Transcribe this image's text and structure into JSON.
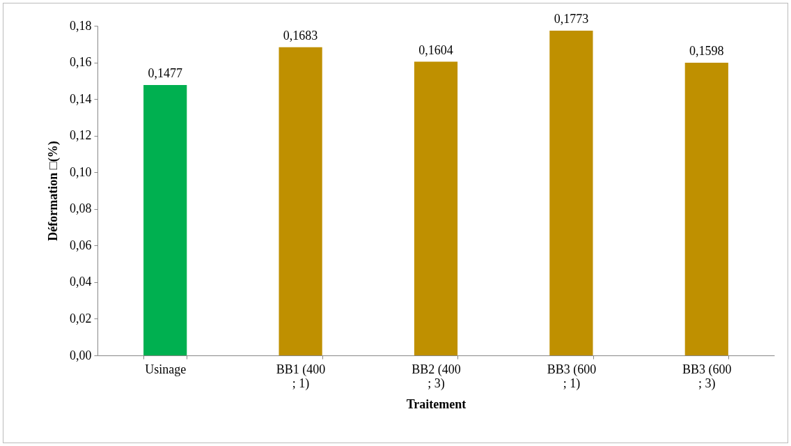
{
  "chart_data": {
    "type": "bar",
    "xlabel": "Traitement",
    "ylabel": "Déformation □(%)",
    "categories": [
      "Usinage",
      "BB1 (400 ; 1)",
      "BB2 (400 ; 3)",
      "BB3 (600 ; 1)",
      "BB3 (600 ; 3)"
    ],
    "values": [
      0.1477,
      0.1683,
      0.1604,
      0.1773,
      0.1598
    ],
    "colors": [
      "#00b050",
      "#bf9000",
      "#bf9000",
      "#bf9000",
      "#bf9000"
    ],
    "ylim": [
      0,
      0.18
    ],
    "yticks": [
      {
        "value": 0,
        "label": "0,00"
      },
      {
        "value": 0.02,
        "label": "0,02"
      },
      {
        "value": 0.04,
        "label": "0,04"
      },
      {
        "value": 0.06,
        "label": "0,06"
      },
      {
        "value": 0.08,
        "label": "0,08"
      },
      {
        "value": 0.1,
        "label": "0,10"
      },
      {
        "value": 0.12,
        "label": "0,12"
      },
      {
        "value": 0.14,
        "label": "0,14"
      },
      {
        "value": 0.16,
        "label": "0,16"
      },
      {
        "value": 0.18,
        "label": "0,18"
      }
    ],
    "value_labels": [
      "0,1477",
      "0,1683",
      "0,1604",
      "0,1773",
      "0,1598"
    ],
    "grid": false
  }
}
